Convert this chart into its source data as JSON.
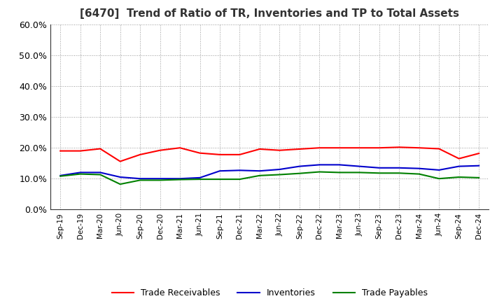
{
  "title": "[6470]  Trend of Ratio of TR, Inventories and TP to Total Assets",
  "x_labels": [
    "Sep-19",
    "Dec-19",
    "Mar-20",
    "Jun-20",
    "Sep-20",
    "Dec-20",
    "Mar-21",
    "Jun-21",
    "Sep-21",
    "Dec-21",
    "Mar-22",
    "Jun-22",
    "Sep-22",
    "Dec-22",
    "Mar-23",
    "Jun-23",
    "Sep-23",
    "Dec-23",
    "Mar-24",
    "Jun-24",
    "Sep-24",
    "Dec-24"
  ],
  "trade_receivables": [
    0.19,
    0.19,
    0.197,
    0.156,
    0.178,
    0.192,
    0.2,
    0.183,
    0.178,
    0.178,
    0.196,
    0.192,
    0.196,
    0.2,
    0.2,
    0.2,
    0.2,
    0.202,
    0.2,
    0.197,
    0.165,
    0.182
  ],
  "inventories": [
    0.11,
    0.12,
    0.12,
    0.105,
    0.1,
    0.1,
    0.1,
    0.103,
    0.125,
    0.127,
    0.125,
    0.13,
    0.14,
    0.145,
    0.145,
    0.14,
    0.135,
    0.135,
    0.133,
    0.128,
    0.14,
    0.142
  ],
  "trade_payables": [
    0.108,
    0.115,
    0.113,
    0.082,
    0.095,
    0.095,
    0.097,
    0.098,
    0.098,
    0.098,
    0.11,
    0.113,
    0.117,
    0.122,
    0.12,
    0.12,
    0.118,
    0.118,
    0.115,
    0.1,
    0.105,
    0.103
  ],
  "tr_color": "#ff0000",
  "inv_color": "#0000cc",
  "tp_color": "#008000",
  "ylim": [
    0.0,
    0.6
  ],
  "yticks": [
    0.0,
    0.1,
    0.2,
    0.3,
    0.4,
    0.5,
    0.6
  ],
  "background_color": "#ffffff",
  "grid_color": "#999999",
  "title_color": "#333333"
}
